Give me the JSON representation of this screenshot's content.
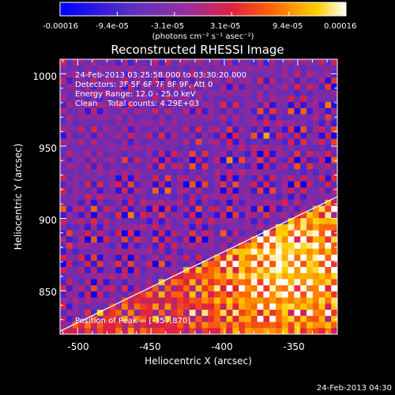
{
  "colorbar": {
    "ticks": [
      "-0.00016",
      "-9.4e-05",
      "-3.1e-05",
      "3.1e-05",
      "9.4e-05",
      "0.00016"
    ],
    "unit_label": "(photons cm⁻² s⁻¹ asec⁻²)",
    "min": -0.00016,
    "max": 0.00016
  },
  "chart_data": {
    "type": "heatmap",
    "title": "Reconstructed RHESSI Image",
    "xlabel": "Heliocentric X (arcsec)",
    "ylabel": "Heliocentric Y (arcsec)",
    "xlim": [
      -512,
      -323
    ],
    "ylim": [
      820,
      1010
    ],
    "xticks": [
      -500,
      -450,
      -400,
      -350
    ],
    "xtick_labels": [
      "-500",
      "-450",
      "-400",
      "-350"
    ],
    "yticks": [
      850,
      900,
      950,
      1000
    ],
    "ytick_labels": [
      "850",
      "900",
      "950",
      "1000"
    ],
    "info_lines": [
      "24-Feb-2013 03:25:58.000 to 03:30:20.000",
      "Detectors: 3F 5F 6F 7F 8F 9F, Att 0",
      "Energy Range: 12.0 - 25.0 keV",
      "Clean    Total counts: 4.29E+03"
    ],
    "peak_annotation": "Position of Peak = [-357,870]",
    "peak": [
      -357,
      870
    ],
    "limb_line": {
      "from": [
        -512,
        822
      ],
      "to": [
        -323,
        915
      ]
    },
    "colormap": [
      "#0000ff",
      "#7f3fbf",
      "#ff3f00",
      "#ffff00",
      "#ffffff"
    ],
    "grid": false
  },
  "footer": {
    "timestamp": "24-Feb-2013 04:30"
  }
}
